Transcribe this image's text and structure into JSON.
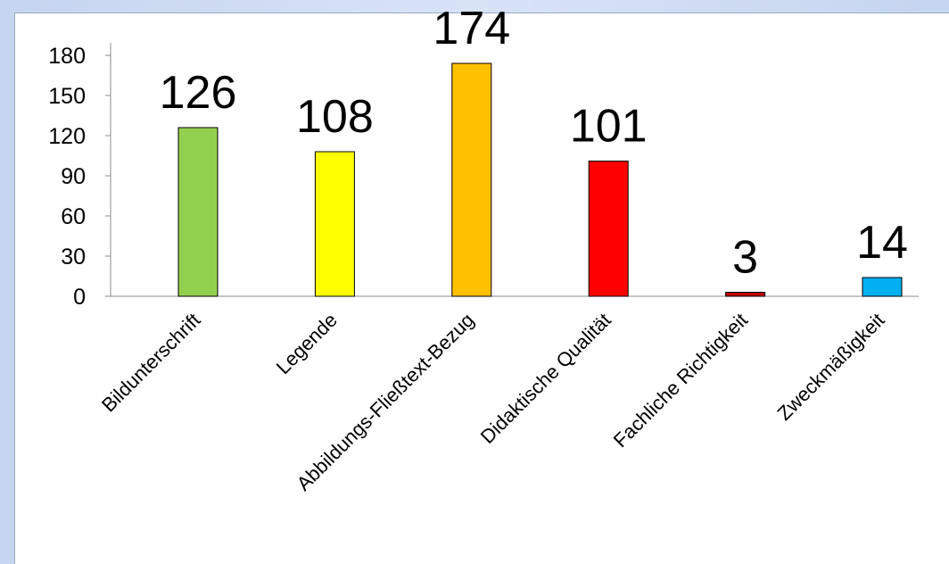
{
  "chart_data": {
    "type": "bar",
    "categories": [
      "Bildunterschrift",
      "Legende",
      "Abbildungs-Fließtext-Bezug",
      "Didaktische Qualität",
      "Fachliche Richtigkeit",
      "Zweckmäßigkeit"
    ],
    "values": [
      126,
      108,
      174,
      101,
      3,
      14
    ],
    "colors": [
      "#92d050",
      "#ffff00",
      "#ffc000",
      "#ff0000",
      "#c00000",
      "#00b0f0"
    ],
    "yticks": [
      0,
      30,
      60,
      90,
      120,
      150,
      180
    ],
    "ylim": [
      0,
      180
    ],
    "grid": false,
    "legend": "none",
    "title": "",
    "xlabel": "",
    "ylabel": ""
  }
}
